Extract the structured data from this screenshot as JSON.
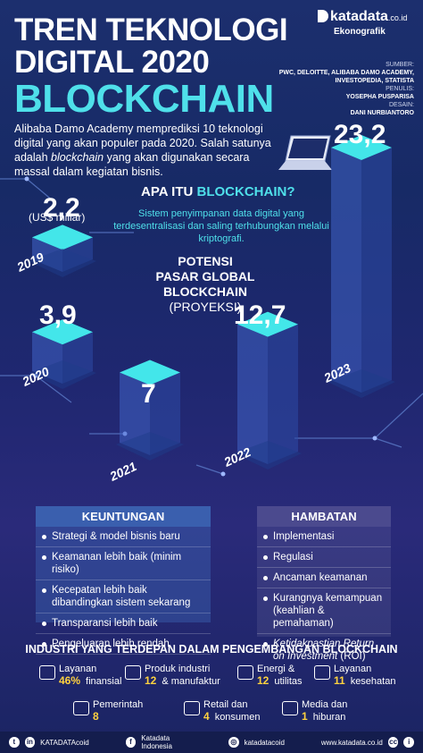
{
  "header": {
    "title_line1": "TREN TEKNOLOGI",
    "title_line2": "DIGITAL 2020",
    "title_line3": "BLOCKCHAIN",
    "brand": "katadata",
    "brand_suffix": ".co.id",
    "brand_sub": "Ekonografik"
  },
  "credits": {
    "sumber_label": "SUMBER:",
    "sumber_value": "PWC, DELOITTE, ALIBABA DAMO ACADEMY, INVESTOPEDIA, STATISTA",
    "penulis_label": "PENULIS:",
    "penulis_value": "YOSEPHA PUSPARISA",
    "desain_label": "DESAIN:",
    "desain_value": "DANI NURBIANTORO"
  },
  "intro": {
    "part1": "Alibaba Damo Academy memprediksi 10 teknologi digital yang akan populer pada 2020. Salah satunya adalah ",
    "italic": "blockchain",
    "part2": " yang akan digunakan secara massal dalam kegiatan bisnis."
  },
  "what_is": {
    "title_prefix": "APA ITU ",
    "title_highlight": "BLOCKCHAIN?",
    "description": "Sistem penyimpanan data digital yang terdesentralisasi dan saling terhubungkan melalui kriptografi."
  },
  "potensi": {
    "line1": "POTENSI",
    "line2": "PASAR GLOBAL BLOCKCHAIN",
    "line3": "(PROYEKSI)"
  },
  "chart_data": {
    "type": "bar",
    "categories": [
      "2019",
      "2020",
      "2021",
      "2022",
      "2023"
    ],
    "values": [
      2.2,
      3.9,
      7,
      12.7,
      23.2
    ],
    "value_labels": [
      "2,2",
      "3,9",
      "7",
      "12,7",
      "23,2"
    ],
    "unit_label": "(US$ miliar)"
  },
  "keuntungan": {
    "title": "KEUNTUNGAN",
    "items": [
      "Strategi & model bisnis baru",
      "Keamanan lebih baik (minim risiko)",
      "Kecepatan lebih baik dibandingkan sistem sekarang",
      "Transparansi lebih baik",
      "Pengeluaran lebih rendah"
    ]
  },
  "hambatan": {
    "title": "HAMBATAN",
    "items": [
      "Implementasi",
      "Regulasi",
      "Ancaman keamanan",
      "Kurangnya kemampuan (keahlian & pemahaman)"
    ],
    "last_italic": "Ketidakpastian Return on Investment",
    "last_suffix": " (ROI)"
  },
  "industri": {
    "title": "INDUSTRI YANG TERDEPAN DALAM PENGEMBANGAN BLOCKCHAIN",
    "items": [
      {
        "pct": "46%",
        "label1": "Layanan",
        "label2": "finansial",
        "icon": "bank-icon"
      },
      {
        "pct": "12",
        "label1": "Produk industri",
        "label2": "& manufaktur",
        "icon": "factory-icon"
      },
      {
        "pct": "12",
        "label1": "Energi &",
        "label2": "utilitas",
        "icon": "energy-icon"
      },
      {
        "pct": "11",
        "label1": "Layanan",
        "label2": "kesehatan",
        "icon": "health-icon"
      },
      {
        "pct": "8",
        "label1": "Pemerintah",
        "label2": "",
        "icon": "government-icon"
      },
      {
        "pct": "4",
        "label1": "Retail dan",
        "label2": "konsumen",
        "icon": "cart-icon"
      },
      {
        "pct": "1",
        "label1": "Media dan",
        "label2": "hiburan",
        "icon": "media-icon"
      }
    ]
  },
  "footer": {
    "social1": "KATADATAcoid",
    "social2": "Katadata Indonesia",
    "social3": "katadatacoid",
    "website": "www.katadata.co.id"
  },
  "colors": {
    "accent": "#4fe0ea",
    "highlight": "#ffd23f",
    "panel": "#3a5fae"
  }
}
